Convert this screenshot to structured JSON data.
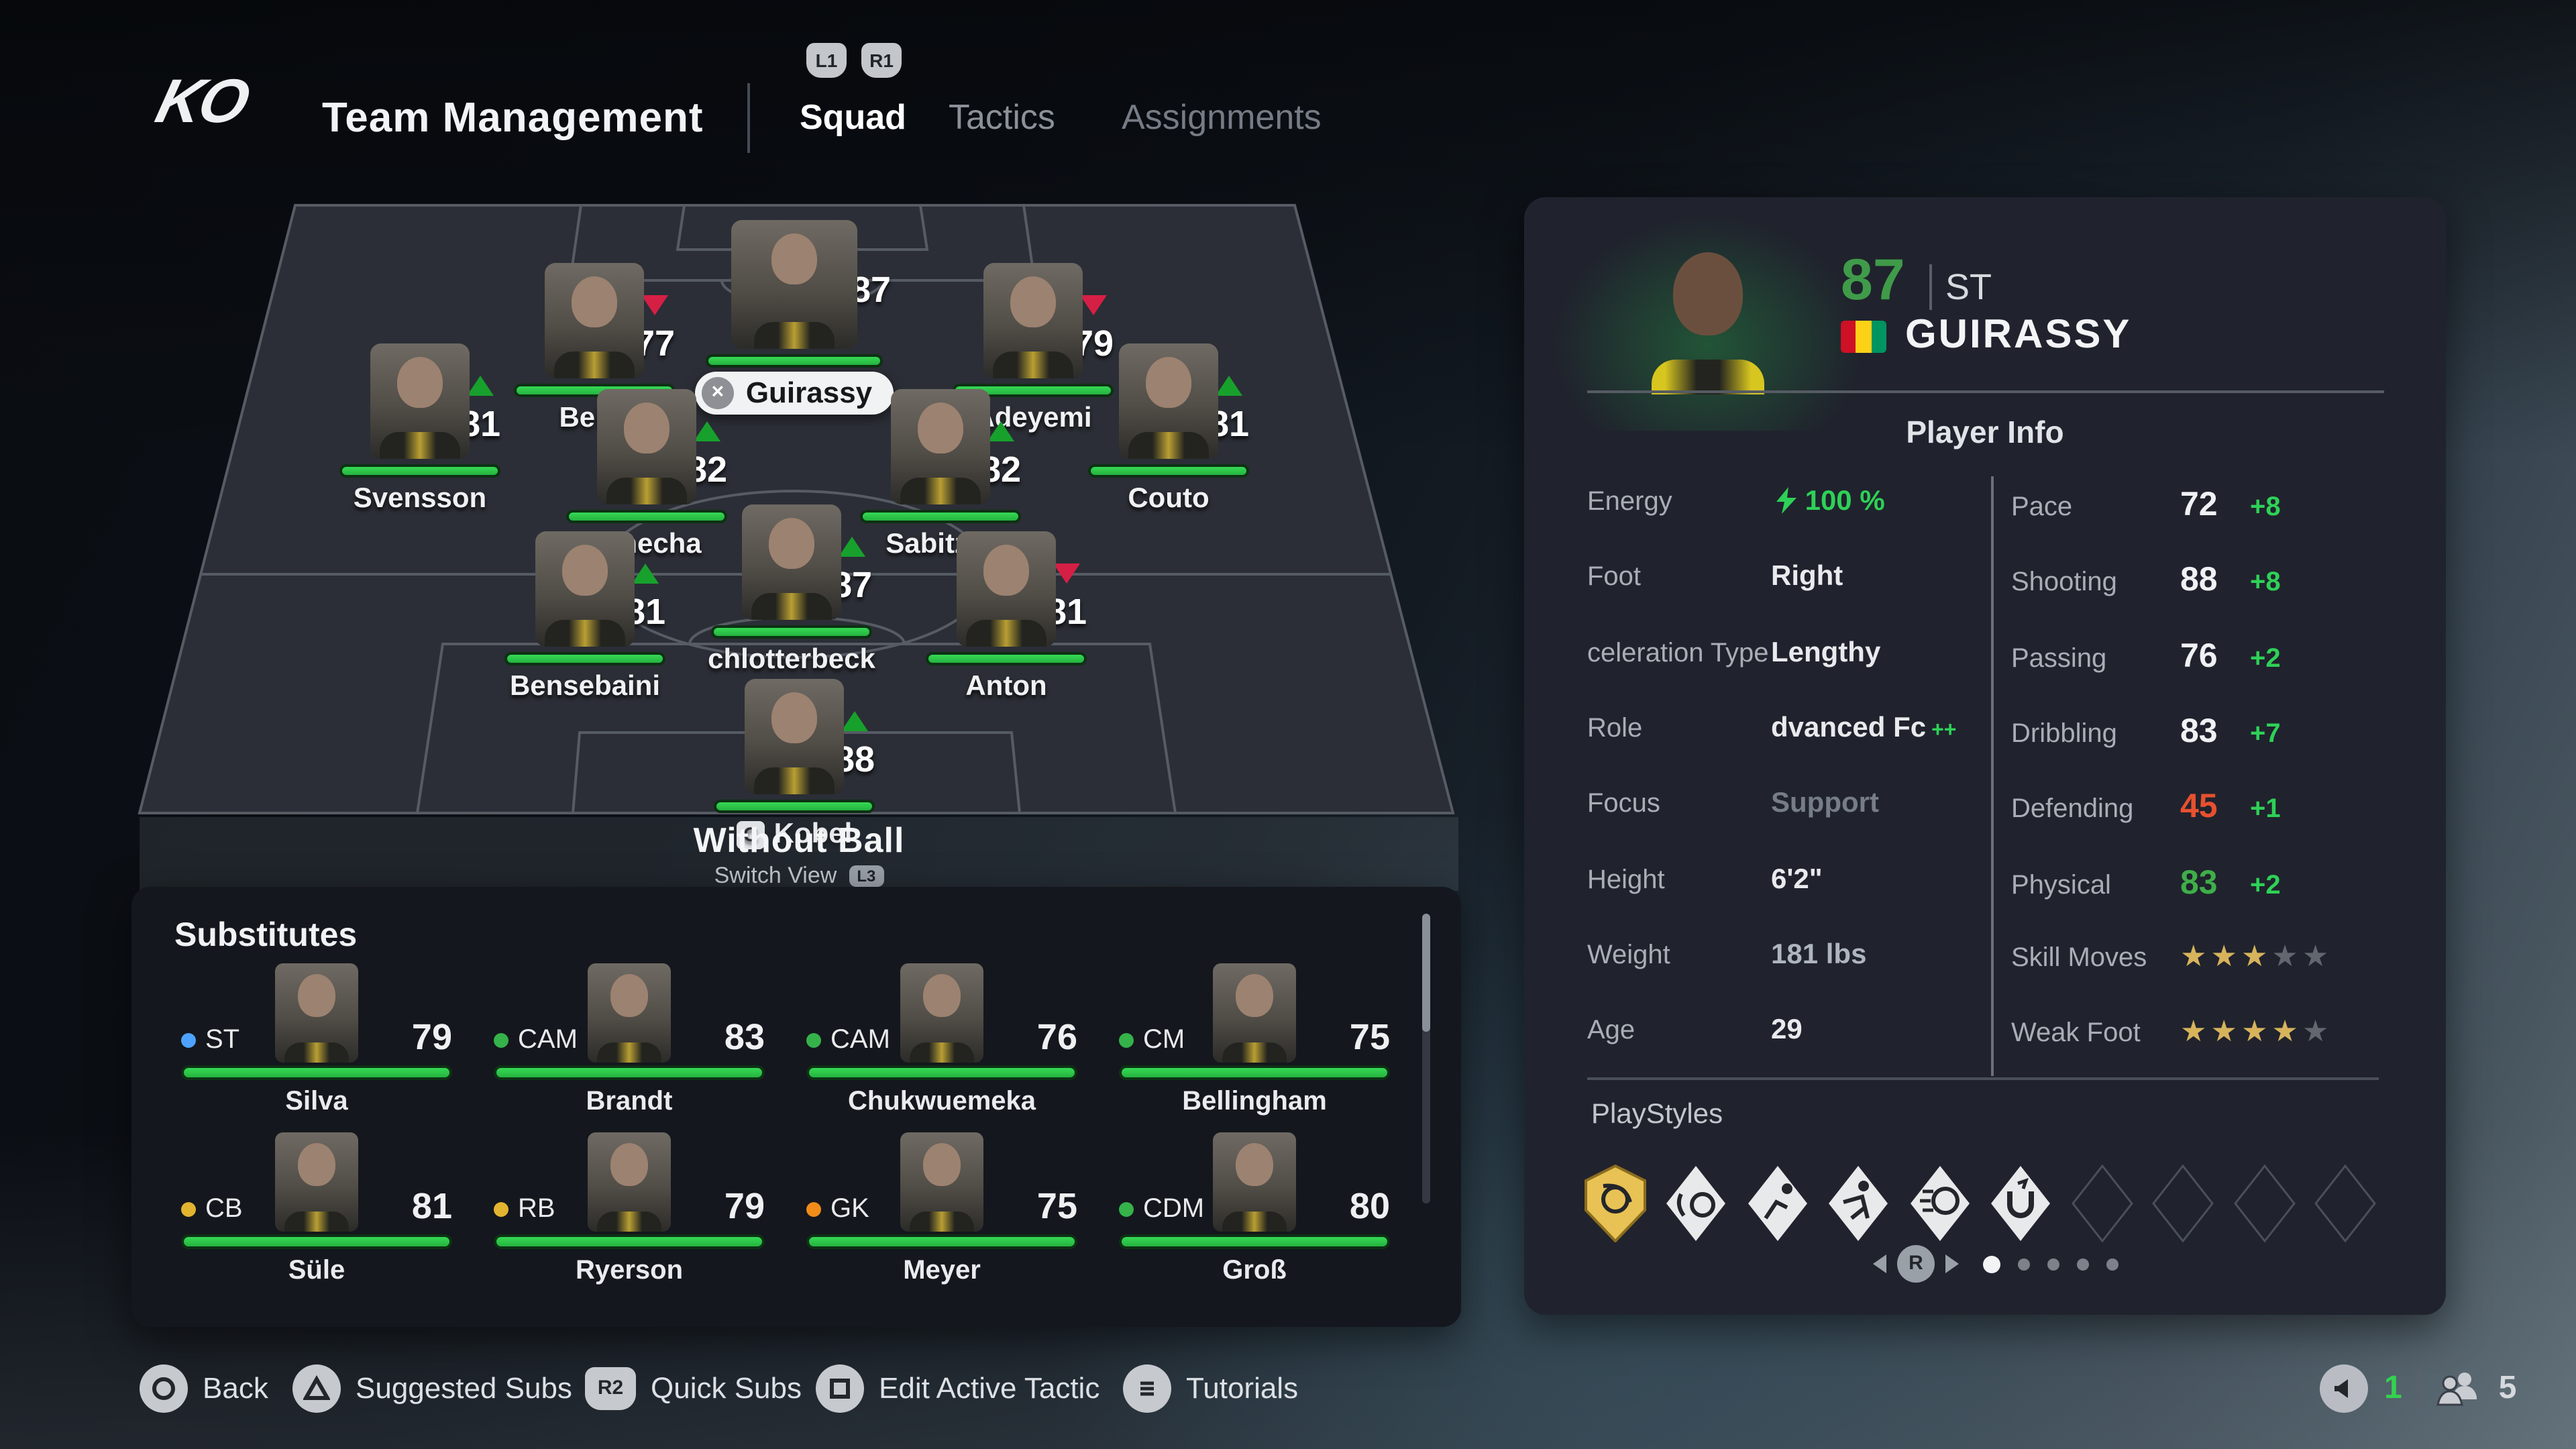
{
  "colors": {
    "accent_green": "#2ed157",
    "energy_bar": "#2fc94c",
    "negative_red": "#e8502f",
    "trend_up": "#17a12c",
    "trend_down": "#d61f45",
    "star_gold": "#d7b35c",
    "flag": [
      "#ce1126",
      "#fcd116",
      "#009460"
    ],
    "dot_st_blue": "#4da3ff",
    "dot_mid_green": "#35b24a",
    "dot_def_yellow": "#e3b42f",
    "dot_gk_orange": "#ef8c1a"
  },
  "header": {
    "logo_text": "KO",
    "title": "Team Management",
    "buttons": {
      "l1": "L1",
      "r1": "R1"
    },
    "tabs": [
      {
        "label": "Squad",
        "active": true
      },
      {
        "label": "Tactics",
        "active": false
      },
      {
        "label": "Assignments",
        "active": false
      }
    ]
  },
  "pitch": {
    "view_title": "Without Ball",
    "switch_view_label": "Switch View",
    "switch_view_button": "L3",
    "selected_player_tag": "Guirassy",
    "captain_badge": "C",
    "players": [
      {
        "name": "Beier",
        "rating": "77",
        "trend": "down"
      },
      {
        "name": "Guirassy",
        "rating": "87",
        "trend": "none"
      },
      {
        "name": "Adeyemi",
        "rating": "79",
        "trend": "down"
      },
      {
        "name": "Svensson",
        "rating": "81",
        "trend": "up"
      },
      {
        "name": "Couto",
        "rating": "81",
        "trend": "up"
      },
      {
        "name": "Nmecha",
        "rating": "82",
        "trend": "up"
      },
      {
        "name": "Sabitzer",
        "rating": "82",
        "trend": "up"
      },
      {
        "name": "Bensebaini",
        "rating": "81",
        "trend": "up"
      },
      {
        "name": "chlotterbeck",
        "rating": "87",
        "trend": "up"
      },
      {
        "name": "Anton",
        "rating": "81",
        "trend": "down"
      },
      {
        "name": "Kobel",
        "rating": "88",
        "trend": "up"
      }
    ]
  },
  "substitutes": {
    "title": "Substitutes",
    "players": [
      {
        "position": "ST",
        "rating": "79",
        "name": "Silva",
        "dot": "#4da3ff"
      },
      {
        "position": "CAM",
        "rating": "83",
        "name": "Brandt",
        "dot": "#35b24a"
      },
      {
        "position": "CAM",
        "rating": "76",
        "name": "Chukwuemeka",
        "dot": "#35b24a"
      },
      {
        "position": "CM",
        "rating": "75",
        "name": "Bellingham",
        "dot": "#35b24a"
      },
      {
        "position": "CB",
        "rating": "81",
        "name": "Süle",
        "dot": "#e3b42f"
      },
      {
        "position": "RB",
        "rating": "79",
        "name": "Ryerson",
        "dot": "#e3b42f"
      },
      {
        "position": "GK",
        "rating": "75",
        "name": "Meyer",
        "dot": "#ef8c1a"
      },
      {
        "position": "CDM",
        "rating": "80",
        "name": "Groß",
        "dot": "#35b24a"
      }
    ]
  },
  "player_panel": {
    "rating": "87",
    "position": "ST",
    "name": "GUIRASSY",
    "section_title": "Player Info",
    "info_rows": [
      {
        "label": "Energy",
        "value": "100 %"
      },
      {
        "label": "Foot",
        "value": "Right"
      },
      {
        "label": "celeration Type",
        "value": "Lengthy"
      },
      {
        "label": "Role",
        "value": "dvanced Fc",
        "boost": "++"
      },
      {
        "label": "Focus",
        "value": "Support"
      },
      {
        "label": "Height",
        "value": "6'2\""
      },
      {
        "label": "Weight",
        "value": "181 lbs"
      },
      {
        "label": "Age",
        "value": "29"
      }
    ],
    "stat_rows": [
      {
        "label": "Pace",
        "value": "72",
        "delta": "+8"
      },
      {
        "label": "Shooting",
        "value": "88",
        "delta": "+8"
      },
      {
        "label": "Passing",
        "value": "76",
        "delta": "+2"
      },
      {
        "label": "Dribbling",
        "value": "83",
        "delta": "+7"
      },
      {
        "label": "Defending",
        "value": "45",
        "delta": "+1"
      },
      {
        "label": "Physical",
        "value": "83",
        "delta": "+2"
      }
    ],
    "skill_moves": {
      "label": "Skill Moves",
      "stars": 3,
      "total": 5
    },
    "weak_foot": {
      "label": "Weak Foot",
      "stars": 4,
      "total": 5
    },
    "playstyles_label": "PlayStyles",
    "playstyles": {
      "plus_slots": 1,
      "filled_slots": 5,
      "empty_slots": 4
    },
    "pagination": {
      "button": "R",
      "dots": 5,
      "active_dot": 1
    }
  },
  "bottom_bar": {
    "actions": [
      {
        "button": "circle",
        "label": "Back"
      },
      {
        "button": "triangle",
        "label": "Suggested Subs"
      },
      {
        "button": "R2",
        "label": "Quick Subs"
      },
      {
        "button": "square",
        "label": "Edit Active Tactic"
      },
      {
        "button": "menu",
        "label": "Tutorials"
      }
    ],
    "r2_text": "R2",
    "volume_count": "1",
    "online_count": "5"
  }
}
